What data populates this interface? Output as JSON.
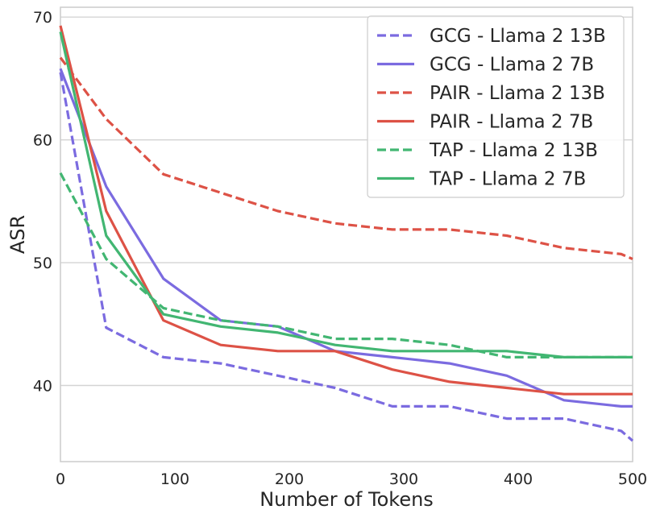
{
  "chart_data": {
    "type": "line",
    "xlabel": "Number of Tokens",
    "ylabel": "ASR",
    "xlim": [
      0,
      500
    ],
    "ylim": [
      33.8,
      70.8
    ],
    "xticks": [
      0,
      100,
      200,
      300,
      400,
      500
    ],
    "yticks": [
      40,
      50,
      60,
      70
    ],
    "grid": "horizontal",
    "legend_position": "top-right",
    "series": [
      {
        "name": "GCG - Llama 2 13B",
        "color": "#7b6be0",
        "dash": "dashed",
        "x": [
          0,
          40,
          90,
          140,
          190,
          240,
          290,
          340,
          390,
          440,
          490,
          500
        ],
        "y": [
          65.5,
          44.7,
          42.3,
          41.8,
          40.8,
          39.8,
          38.3,
          38.3,
          37.3,
          37.3,
          36.3,
          35.5
        ]
      },
      {
        "name": "GCG - Llama 2 7B",
        "color": "#7b6be0",
        "dash": "solid",
        "x": [
          0,
          40,
          90,
          140,
          190,
          240,
          290,
          340,
          390,
          440,
          490,
          500
        ],
        "y": [
          65.8,
          56.2,
          48.7,
          45.3,
          44.8,
          42.8,
          42.3,
          41.8,
          40.8,
          38.8,
          38.3,
          38.3
        ]
      },
      {
        "name": "PAIR - Llama 2 13B",
        "color": "#dd5246",
        "dash": "dashed",
        "x": [
          0,
          40,
          90,
          140,
          190,
          240,
          290,
          340,
          390,
          440,
          490,
          500
        ],
        "y": [
          66.7,
          61.7,
          57.2,
          55.7,
          54.2,
          53.2,
          52.7,
          52.7,
          52.2,
          51.2,
          50.7,
          50.3
        ]
      },
      {
        "name": "PAIR - Llama 2 7B",
        "color": "#dd5246",
        "dash": "solid",
        "x": [
          0,
          40,
          90,
          140,
          190,
          240,
          290,
          340,
          390,
          440,
          490,
          500
        ],
        "y": [
          69.3,
          54.2,
          45.3,
          43.3,
          42.8,
          42.8,
          41.3,
          40.3,
          39.8,
          39.3,
          39.3,
          39.3
        ]
      },
      {
        "name": "TAP - Llama 2 13B",
        "color": "#42b672",
        "dash": "dashed",
        "x": [
          0,
          40,
          90,
          140,
          190,
          240,
          290,
          340,
          390,
          440,
          490,
          500
        ],
        "y": [
          57.3,
          50.3,
          46.3,
          45.3,
          44.8,
          43.8,
          43.8,
          43.3,
          42.3,
          42.3,
          42.3,
          42.3
        ]
      },
      {
        "name": "TAP - Llama 2 7B",
        "color": "#42b672",
        "dash": "solid",
        "x": [
          0,
          40,
          90,
          140,
          190,
          240,
          290,
          340,
          390,
          440,
          490,
          500
        ],
        "y": [
          68.8,
          52.2,
          45.8,
          44.8,
          44.3,
          43.3,
          42.8,
          42.8,
          42.8,
          42.3,
          42.3,
          42.3
        ]
      }
    ]
  }
}
